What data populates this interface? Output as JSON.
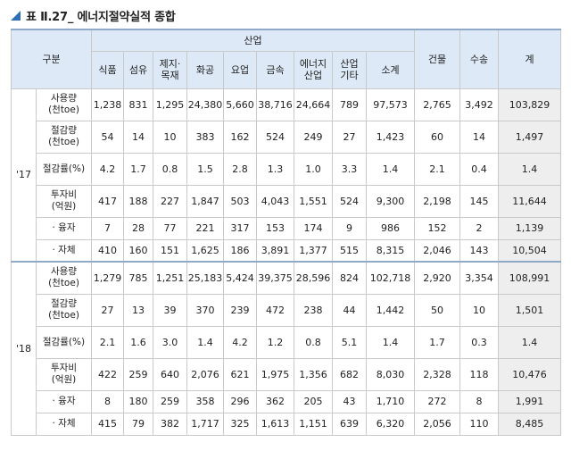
{
  "title": "표 Ⅱ.27_ 에너지절약실적 종합",
  "header": {
    "gubun": "구분",
    "industry_group": "산업",
    "industry_cols": [
      "식품",
      "섬유",
      "제지·\n목재",
      "화공",
      "요업",
      "금속",
      "에너지\n산업",
      "산업\n기타",
      "소계"
    ],
    "other_cols": [
      "건물",
      "수송",
      "계"
    ]
  },
  "years": [
    {
      "year": "'17",
      "rows": [
        {
          "label": "사용량\n(천toe)",
          "values": [
            "1,238",
            "831",
            "1,295",
            "24,380",
            "5,660",
            "38,716",
            "24,664",
            "789",
            "97,573",
            "2,765",
            "3,492",
            "103,829"
          ]
        },
        {
          "label": "절감량\n(천toe)",
          "values": [
            "54",
            "14",
            "10",
            "383",
            "162",
            "524",
            "249",
            "27",
            "1,423",
            "60",
            "14",
            "1,497"
          ]
        },
        {
          "label": "절감률(%)",
          "values": [
            "4.2",
            "1.7",
            "0.8",
            "1.5",
            "2.8",
            "1.3",
            "1.0",
            "3.3",
            "1.4",
            "2.1",
            "0.4",
            "1.4"
          ]
        },
        {
          "label": "투자비\n(억원)",
          "values": [
            "417",
            "188",
            "227",
            "1,847",
            "503",
            "4,043",
            "1,551",
            "524",
            "9,300",
            "2,198",
            "145",
            "11,644"
          ]
        },
        {
          "label": "· 융자",
          "values": [
            "7",
            "28",
            "77",
            "221",
            "317",
            "153",
            "174",
            "9",
            "986",
            "152",
            "2",
            "1,139"
          ]
        },
        {
          "label": "· 자체",
          "values": [
            "410",
            "160",
            "151",
            "1,625",
            "186",
            "3,891",
            "1,377",
            "515",
            "8,315",
            "2,046",
            "143",
            "10,504"
          ]
        }
      ]
    },
    {
      "year": "'18",
      "rows": [
        {
          "label": "사용량\n(천toe)",
          "values": [
            "1,279",
            "785",
            "1,251",
            "25,183",
            "5,424",
            "39,375",
            "28,596",
            "824",
            "102,718",
            "2,920",
            "3,354",
            "108,991"
          ]
        },
        {
          "label": "절감량\n(천toe)",
          "values": [
            "27",
            "13",
            "39",
            "370",
            "239",
            "472",
            "238",
            "44",
            "1,442",
            "50",
            "10",
            "1,501"
          ]
        },
        {
          "label": "절감률(%)",
          "values": [
            "2.1",
            "1.6",
            "3.0",
            "1.4",
            "4.2",
            "1.2",
            "0.8",
            "5.1",
            "1.4",
            "1.7",
            "0.3",
            "1.4"
          ]
        },
        {
          "label": "투자비\n(억원)",
          "values": [
            "422",
            "259",
            "640",
            "2,076",
            "621",
            "1,975",
            "1,356",
            "682",
            "8,030",
            "2,328",
            "118",
            "10,476"
          ]
        },
        {
          "label": "· 융자",
          "values": [
            "8",
            "180",
            "259",
            "358",
            "296",
            "362",
            "205",
            "43",
            "1,710",
            "272",
            "8",
            "1,991"
          ]
        },
        {
          "label": "· 자체",
          "values": [
            "415",
            "79",
            "382",
            "1,717",
            "325",
            "1,613",
            "1,151",
            "639",
            "6,320",
            "2,056",
            "110",
            "8,485"
          ]
        }
      ]
    }
  ],
  "colors": {
    "header_bg": "#dde9f6",
    "total_bg": "#eeeeee",
    "accent": "#2f6fb5"
  }
}
